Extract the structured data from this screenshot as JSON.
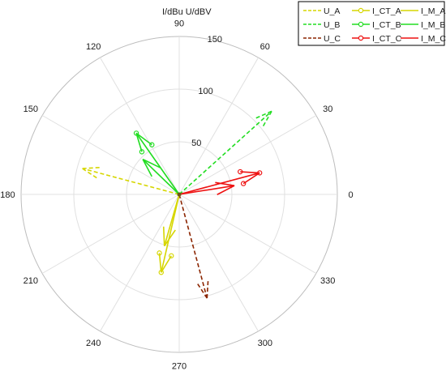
{
  "chart_data": {
    "type": "polar-phasor",
    "units_label": "I/dBu  U/dBV",
    "r_max": 150,
    "r_ticks": [
      50,
      100,
      150
    ],
    "angle_ticks": [
      0,
      30,
      60,
      90,
      120,
      150,
      180,
      210,
      240,
      270,
      300,
      330
    ],
    "grid": true,
    "legend_position": "top-right",
    "series": [
      {
        "name": "U_A",
        "color": "#d6d600",
        "style": "dashed",
        "marker": "open-arrow",
        "angle": 165,
        "magnitude": 95
      },
      {
        "name": "U_B",
        "color": "#22dd22",
        "style": "dashed",
        "marker": "open-arrow",
        "angle": 42,
        "magnitude": 118
      },
      {
        "name": "U_C",
        "color": "#8b2500",
        "style": "dashed",
        "marker": "open-arrow",
        "angle": 285,
        "magnitude": 102
      },
      {
        "name": "I_CT_A",
        "color": "#d6d600",
        "style": "solid",
        "marker": "circle-arrow",
        "angle": 257,
        "magnitude": 76
      },
      {
        "name": "I_CT_B",
        "color": "#22dd22",
        "style": "solid",
        "marker": "circle-arrow",
        "angle": 125,
        "magnitude": 71
      },
      {
        "name": "I_CT_C",
        "color": "#ee1111",
        "style": "solid",
        "marker": "circle-arrow",
        "angle": 15,
        "magnitude": 79
      },
      {
        "name": "I_M_A",
        "color": "#d6d600",
        "style": "solid",
        "marker": "open-arrow",
        "angle": 254,
        "magnitude": 51
      },
      {
        "name": "I_M_B",
        "color": "#22dd22",
        "style": "solid",
        "marker": "open-arrow",
        "angle": 136,
        "magnitude": 48
      },
      {
        "name": "I_M_C",
        "color": "#ee1111",
        "style": "solid",
        "marker": "open-arrow",
        "angle": 9,
        "magnitude": 53
      }
    ]
  }
}
